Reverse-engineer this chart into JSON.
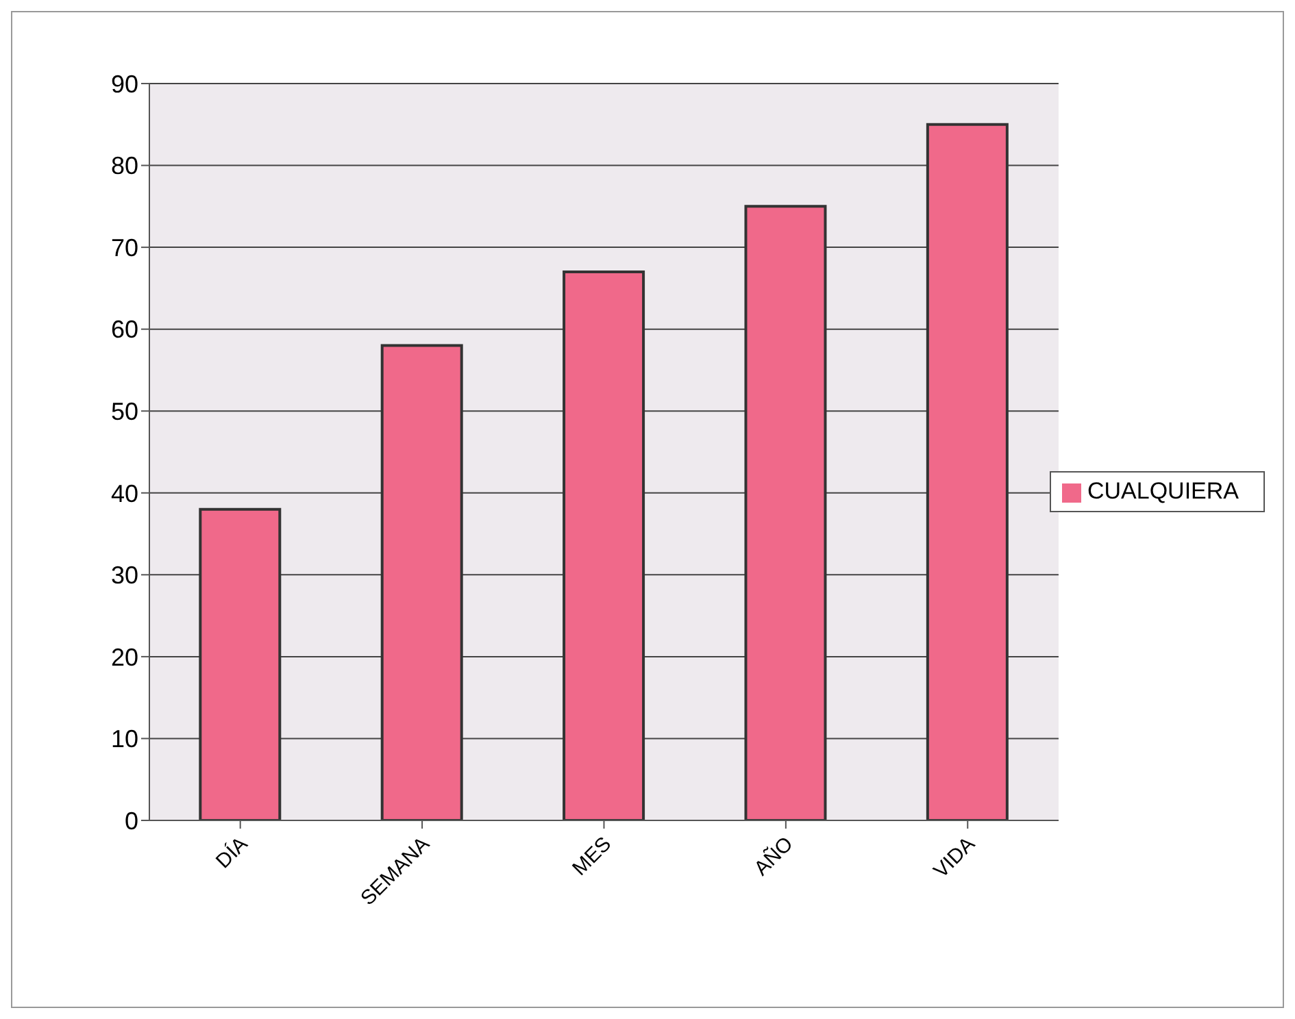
{
  "chart_data": {
    "type": "bar",
    "categories": [
      "DÍA",
      "SEMANA",
      "MES",
      "AÑO",
      "VIDA"
    ],
    "series": [
      {
        "name": "CUALQUIERA",
        "color": "#f0698a",
        "values": [
          38,
          58,
          67,
          75,
          85
        ]
      }
    ],
    "ylim": [
      0,
      90
    ],
    "yticks": [
      0,
      10,
      20,
      30,
      40,
      50,
      60,
      70,
      80,
      90
    ],
    "grid": "y",
    "legend": "right"
  }
}
